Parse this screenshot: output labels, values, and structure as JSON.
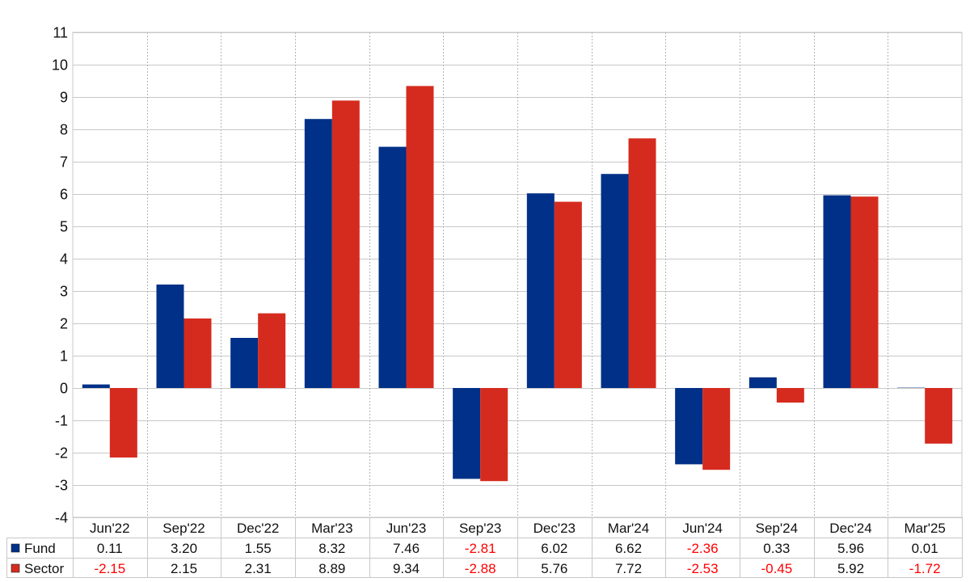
{
  "chart_data": {
    "type": "bar",
    "categories": [
      "Jun'22",
      "Sep'22",
      "Dec'22",
      "Mar'23",
      "Jun'23",
      "Sep'23",
      "Dec'23",
      "Mar'24",
      "Jun'24",
      "Sep'24",
      "Dec'24",
      "Mar'25"
    ],
    "series": [
      {
        "name": "Fund",
        "color": "#003087",
        "values": [
          0.11,
          3.2,
          1.55,
          8.32,
          7.46,
          -2.81,
          6.02,
          6.62,
          -2.36,
          0.33,
          5.96,
          0.01
        ],
        "labels": [
          "0.11",
          "3.20",
          "1.55",
          "8.32",
          "7.46",
          "-2.81",
          "6.02",
          "6.62",
          "-2.36",
          "0.33",
          "5.96",
          "0.01"
        ]
      },
      {
        "name": "Sector",
        "color": "#d52b1e",
        "values": [
          -2.15,
          2.15,
          2.31,
          8.89,
          9.34,
          -2.88,
          5.76,
          7.72,
          -2.53,
          -0.45,
          5.92,
          -1.72
        ],
        "labels": [
          "-2.15",
          "2.15",
          "2.31",
          "8.89",
          "9.34",
          "-2.88",
          "5.76",
          "7.72",
          "-2.53",
          "-0.45",
          "5.92",
          "-1.72"
        ]
      }
    ],
    "ylim": [
      -4,
      11
    ],
    "yticks": [
      "-4",
      "-3",
      "-2",
      "-1",
      "0",
      "1",
      "2",
      "3",
      "4",
      "5",
      "6",
      "7",
      "8",
      "9",
      "10",
      "11"
    ],
    "grid": true,
    "legend": "table-left",
    "negative_label_color": "#ff0000"
  }
}
